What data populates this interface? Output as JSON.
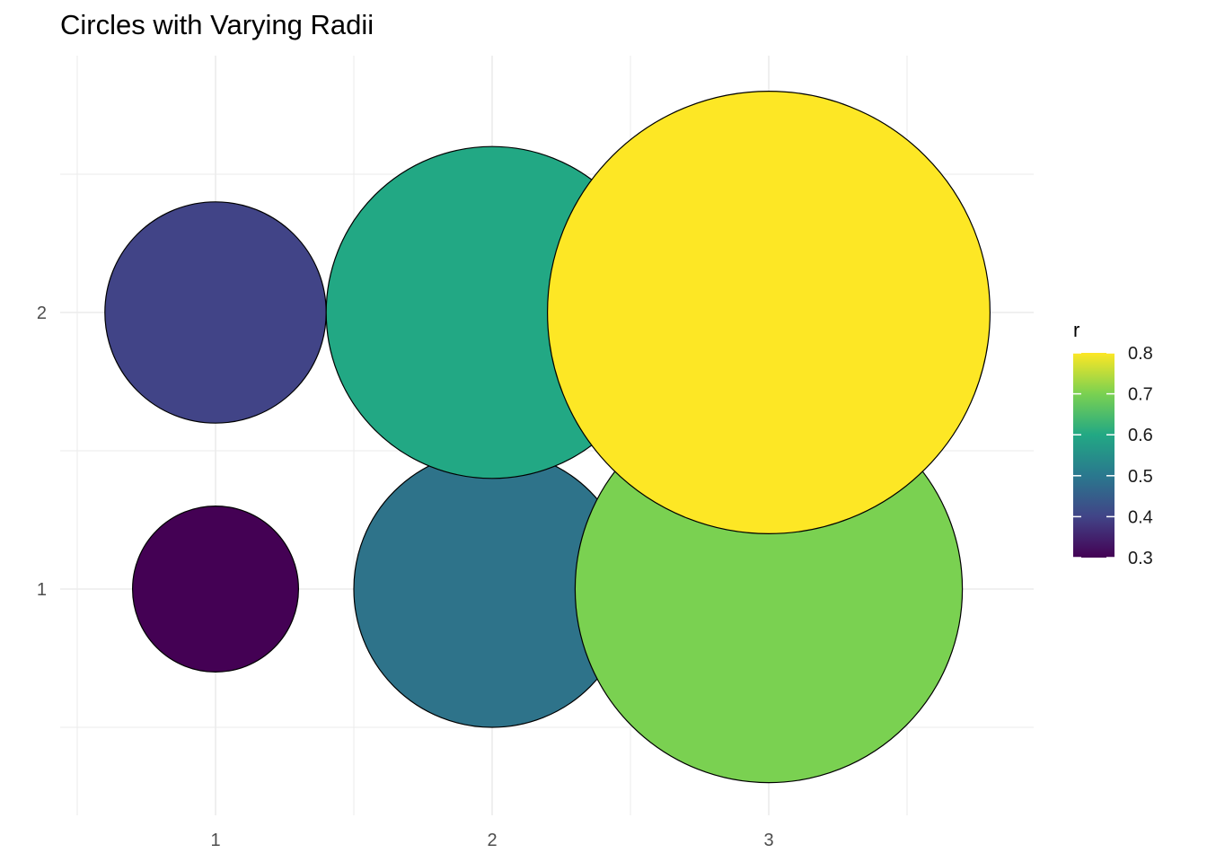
{
  "title": "Circles with Varying Radii",
  "chart_data": {
    "type": "scatter",
    "title": "Circles with Varying Radii",
    "xlabel": "",
    "ylabel": "",
    "xlim": [
      0.5,
      3.5
    ],
    "ylim": [
      0.5,
      2.5
    ],
    "x_ticks": [
      "1",
      "2",
      "3"
    ],
    "y_ticks": [
      "1",
      "2"
    ],
    "grid": true,
    "legend_position": "right",
    "legend_title": "r",
    "legend_ticks": [
      "0.3",
      "0.4",
      "0.5",
      "0.6",
      "0.7",
      "0.8"
    ],
    "color_scale": "viridis",
    "r_range": [
      0.3,
      0.8
    ],
    "points": [
      {
        "x": 1,
        "y": 1,
        "r": 0.3,
        "fill": "#440154"
      },
      {
        "x": 2,
        "y": 1,
        "r": 0.5,
        "fill": "#2e738a"
      },
      {
        "x": 3,
        "y": 1,
        "r": 0.7,
        "fill": "#7ad151"
      },
      {
        "x": 1,
        "y": 2,
        "r": 0.4,
        "fill": "#414487"
      },
      {
        "x": 2,
        "y": 2,
        "r": 0.6,
        "fill": "#22a884"
      },
      {
        "x": 3,
        "y": 2,
        "r": 0.8,
        "fill": "#fde725"
      }
    ]
  },
  "colors": {
    "gradient": [
      "#440154",
      "#414487",
      "#2a788e",
      "#22a884",
      "#7ad151",
      "#fde725"
    ],
    "grid": "#ebebeb",
    "outline": "#000000"
  }
}
